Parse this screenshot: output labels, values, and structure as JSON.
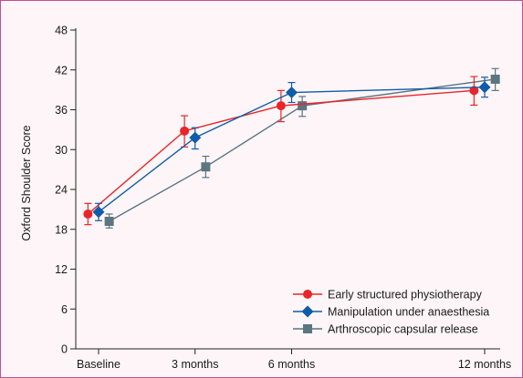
{
  "colors": {
    "frame_border": "#c2508c",
    "panel_background": "#fdf5f7",
    "axis": "#222222"
  },
  "chart_data": {
    "type": "line",
    "title": "",
    "xlabel": "",
    "ylabel": "Oxford Shoulder Score",
    "categories": [
      "Baseline",
      "3 months",
      "6 months",
      "12 months"
    ],
    "x_positions_months": [
      0,
      3,
      6,
      12
    ],
    "ylim": [
      0,
      48
    ],
    "yticks": [
      0,
      6,
      12,
      18,
      24,
      30,
      36,
      42,
      48
    ],
    "grid": false,
    "legend_position": "bottom-right",
    "series": [
      {
        "name": "Early structured physiotherapy",
        "color": "#e8262a",
        "marker": "circle",
        "x_offset": -0.33,
        "values": [
          20.3,
          32.8,
          36.6,
          38.9
        ],
        "ci_low": [
          18.7,
          30.4,
          34.2,
          36.7
        ],
        "ci_high": [
          21.9,
          35.1,
          38.9,
          41.0
        ]
      },
      {
        "name": "Manipulation under anaesthesia",
        "color": "#0f5ca8",
        "marker": "diamond",
        "x_offset": 0,
        "values": [
          20.6,
          31.8,
          38.6,
          39.4
        ],
        "ci_low": [
          19.3,
          30.1,
          37.1,
          37.9
        ],
        "ci_high": [
          21.9,
          33.3,
          40.1,
          40.9
        ]
      },
      {
        "name": "Arthroscopic capsular release",
        "color": "#5b7581",
        "marker": "square",
        "x_offset": 0.33,
        "values": [
          19.2,
          27.4,
          36.6,
          40.6
        ],
        "ci_low": [
          18.2,
          25.8,
          35.0,
          38.9
        ],
        "ci_high": [
          20.3,
          29.0,
          38.0,
          42.2
        ]
      }
    ]
  }
}
